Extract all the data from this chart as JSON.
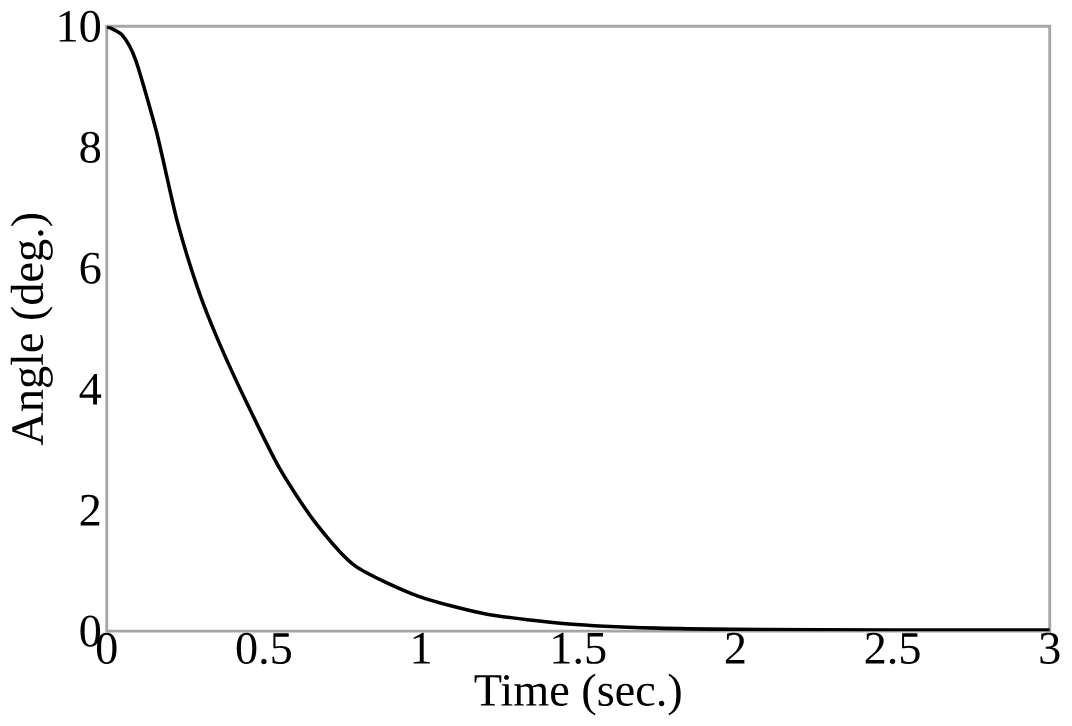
{
  "chart_data": {
    "type": "line",
    "xlabel": "Time (sec.)",
    "ylabel": "Angle (deg.)",
    "x": [
      0,
      0.05,
      0.092,
      0.158,
      0.224,
      0.29,
      0.355,
      0.443,
      0.55,
      0.66,
      0.79,
      0.99,
      1.21,
      1.47,
      1.75,
      2,
      2.5,
      3
    ],
    "series": [
      {
        "color": "#000000",
        "values": [
          10,
          9.85,
          9.44,
          8.26,
          6.78,
          5.66,
          4.8,
          3.8,
          2.69,
          1.82,
          1.08,
          0.58,
          0.28,
          0.12,
          0.05,
          0.03,
          0.02,
          0.02
        ]
      }
    ],
    "xlim": [
      0,
      3
    ],
    "ylim": [
      0,
      10
    ],
    "xticks": [
      0,
      0.5,
      1,
      1.5,
      2,
      2.5,
      3
    ],
    "yticks": [
      0,
      2,
      4,
      6,
      8,
      10
    ],
    "grid": false,
    "marker": "none",
    "line_style": "solid"
  }
}
